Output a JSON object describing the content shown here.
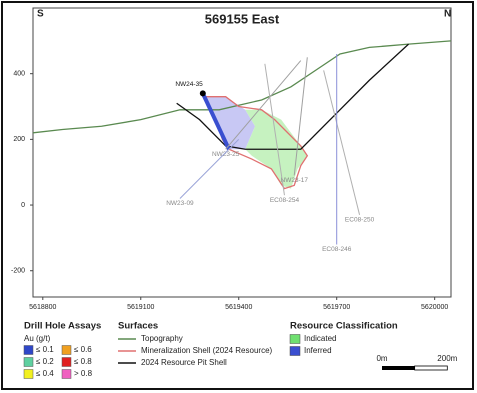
{
  "chart_data": {
    "type": "section",
    "title": "569155 East",
    "left_label": "S",
    "right_label": "N",
    "xlim": [
      5618770,
      5620050
    ],
    "xticks": [
      5618800,
      5619100,
      5619400,
      5619700,
      5620000
    ],
    "ylim": [
      -280,
      600
    ],
    "yticks": [
      -200,
      0,
      200,
      400
    ],
    "grid": false,
    "classes": [
      {
        "name": "Inferred",
        "color": "#c8c8f4",
        "x": [
          5619300,
          5619360,
          5619420,
          5619450,
          5619420,
          5619370,
          5619350,
          5619330
        ],
        "y": [
          330,
          330,
          290,
          240,
          170,
          170,
          200,
          260
        ]
      },
      {
        "name": "Indicated",
        "color": "#c6f2c0",
        "x": [
          5619420,
          5619470,
          5619530,
          5619590,
          5619610,
          5619580,
          5619560,
          5619530,
          5619500,
          5619440,
          5619420,
          5619450
        ],
        "y": [
          290,
          290,
          260,
          180,
          150,
          110,
          50,
          60,
          110,
          150,
          170,
          240
        ]
      }
    ],
    "surfaces": [
      {
        "name": "Topography",
        "color": "#5a8a50",
        "closed": false,
        "x": [
          5618770,
          5618860,
          5618980,
          5619100,
          5619220,
          5619340,
          5619470,
          5619560,
          5619650,
          5619710,
          5619800,
          5619920,
          5620050
        ],
        "y": [
          220,
          230,
          240,
          260,
          290,
          290,
          320,
          360,
          420,
          460,
          480,
          490,
          500
        ]
      },
      {
        "name": "Mineralization Shell (2024 Resource)",
        "color": "#e07070",
        "closed": true,
        "x": [
          5619300,
          5619360,
          5619400,
          5619470,
          5619510,
          5619540,
          5619590,
          5619610,
          5619590,
          5619570,
          5619540,
          5619500,
          5619440,
          5619370,
          5619350,
          5619330,
          5619300
        ],
        "y": [
          330,
          330,
          300,
          290,
          260,
          230,
          180,
          150,
          120,
          60,
          50,
          110,
          140,
          170,
          200,
          260,
          320
        ]
      },
      {
        "name": "2024 Resource Pit Shell",
        "color": "#111111",
        "closed": false,
        "x": [
          5619210,
          5619280,
          5619360,
          5619420,
          5619590,
          5619710,
          5619800,
          5619920
        ],
        "y": [
          310,
          260,
          180,
          170,
          170,
          290,
          380,
          490
        ]
      }
    ],
    "drill_holes": [
      {
        "name": "NW24-35",
        "color": "#3a4fd0",
        "x": [
          5619290,
          5619370
        ],
        "y": [
          340,
          170
        ]
      },
      {
        "name": "NW23-25",
        "color": "#a0a0a0",
        "x": [
          5619590,
          5619360
        ],
        "y": [
          440,
          170
        ]
      },
      {
        "name": "NW23-09",
        "color": "#9aa4d8",
        "x": [
          5619400,
          5619220
        ],
        "y": [
          200,
          20
        ]
      },
      {
        "name": "NW23-17",
        "color": "#a0a0a0",
        "x": [
          5619610,
          5619570
        ],
        "y": [
          450,
          90
        ]
      },
      {
        "name": "EC08-254",
        "color": "#b0b0b0",
        "x": [
          5619480,
          5619540
        ],
        "y": [
          430,
          30
        ]
      },
      {
        "name": "EC08-250",
        "color": "#b0b0b0",
        "x": [
          5619660,
          5619770
        ],
        "y": [
          410,
          -30
        ]
      },
      {
        "name": "EC08-246",
        "color": "#8a90d8",
        "x": [
          5619700,
          5619700
        ],
        "y": [
          460,
          -120
        ]
      }
    ],
    "assay_legend": {
      "title": "Drill Hole Assays",
      "unit": "Au (g/t)",
      "items": [
        {
          "label": "≤ 0.1",
          "color": "#2f47c8"
        },
        {
          "label": "≤ 0.2",
          "color": "#5fd0a0"
        },
        {
          "label": "≤ 0.4",
          "color": "#f2f020"
        },
        {
          "label": "≤ 0.6",
          "color": "#f0a020"
        },
        {
          "label": "≤ 0.8",
          "color": "#e02020"
        },
        {
          "label": "> 0.8",
          "color": "#f060c0"
        }
      ]
    },
    "surfaces_title": "Surfaces",
    "classes_title": "Resource Classification",
    "scale_bar": {
      "length": 200,
      "labels": [
        "0m",
        "200m"
      ]
    }
  }
}
